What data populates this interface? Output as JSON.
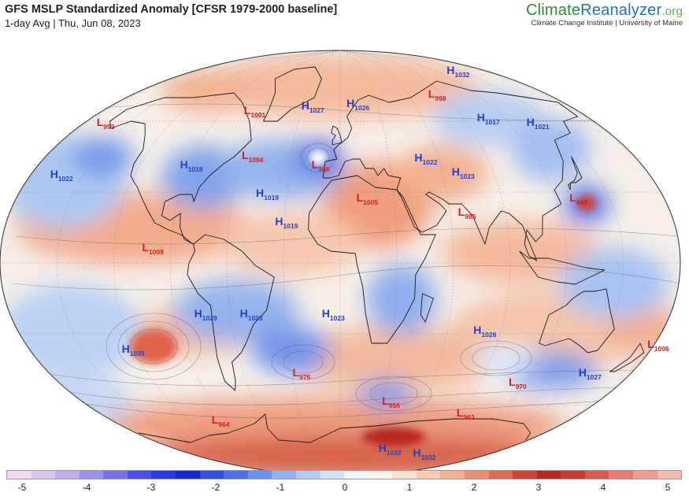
{
  "header": {
    "title": "GFS MSLP Standardized Anomaly [CFSR 1979-2000 baseline]",
    "subtitle": "1-day Avg | Thu, Jun 08, 2023"
  },
  "brand": {
    "part1": "Climate",
    "part2": "Reanalyzer",
    "part3": ".org",
    "sub": "Climate Change Institute | University of Maine"
  },
  "colors": {
    "high_label": "#1f3fd6",
    "low_label": "#d42020",
    "ocean_neutral": "#f4f4f4",
    "coast": "#1a1a1a"
  },
  "pressure_centers": [
    {
      "type": "L",
      "letter": "L",
      "value": "993",
      "lon": -170,
      "lat": 58
    },
    {
      "type": "L",
      "letter": "L",
      "value": "1001",
      "lon": -72,
      "lat": 63
    },
    {
      "type": "H",
      "letter": "H",
      "value": "1027",
      "lon": -30,
      "lat": 65
    },
    {
      "type": "H",
      "letter": "H",
      "value": "1026",
      "lon": 5,
      "lat": 66
    },
    {
      "type": "L",
      "letter": "L",
      "value": "998",
      "lon": 75,
      "lat": 70
    },
    {
      "type": "H",
      "letter": "H",
      "value": "1032",
      "lon": 125,
      "lat": 80
    },
    {
      "type": "H",
      "letter": "H",
      "value": "1017",
      "lon": 98,
      "lat": 60
    },
    {
      "type": "H",
      "letter": "H",
      "value": "1021",
      "lon": 130,
      "lat": 58
    },
    {
      "type": "H",
      "letter": "H",
      "value": "1022",
      "lon": -168,
      "lat": 36
    },
    {
      "type": "H",
      "letter": "H",
      "value": "1018",
      "lon": -95,
      "lat": 40
    },
    {
      "type": "L",
      "letter": "L",
      "value": "1004",
      "lon": -60,
      "lat": 44
    },
    {
      "type": "L",
      "letter": "L",
      "value": "988",
      "lon": -17,
      "lat": 40
    },
    {
      "type": "H",
      "letter": "H",
      "value": "1019",
      "lon": -47,
      "lat": 28
    },
    {
      "type": "H",
      "letter": "H",
      "value": "1022",
      "lon": 45,
      "lat": 43
    },
    {
      "type": "H",
      "letter": "H",
      "value": "1023",
      "lon": 65,
      "lat": 37
    },
    {
      "type": "L",
      "letter": "L",
      "value": "1005",
      "lon": 9,
      "lat": 26
    },
    {
      "type": "H",
      "letter": "H",
      "value": "1019",
      "lon": -35,
      "lat": 16
    },
    {
      "type": "L",
      "letter": "L",
      "value": "985",
      "lon": 64,
      "lat": 20
    },
    {
      "type": "L",
      "letter": "L",
      "value": "982",
      "lon": 127,
      "lat": 26
    },
    {
      "type": "L",
      "letter": "L",
      "value": "1009",
      "lon": -105,
      "lat": 5
    },
    {
      "type": "H",
      "letter": "H",
      "value": "1029",
      "lon": -80,
      "lat": -23
    },
    {
      "type": "H",
      "letter": "H",
      "value": "1023",
      "lon": -55,
      "lat": -23
    },
    {
      "type": "H",
      "letter": "H",
      "value": "1023",
      "lon": -10,
      "lat": -23
    },
    {
      "type": "H",
      "letter": "H",
      "value": "1026",
      "lon": 75,
      "lat": -30
    },
    {
      "type": "L",
      "letter": "L",
      "value": "1006",
      "lon": 178,
      "lat": -36
    },
    {
      "type": "H",
      "letter": "H",
      "value": "1035",
      "lon": -128,
      "lat": -38
    },
    {
      "type": "L",
      "letter": "L",
      "value": "975",
      "lon": -30,
      "lat": -48
    },
    {
      "type": "H",
      "letter": "H",
      "value": "1027",
      "lon": 150,
      "lat": -48
    },
    {
      "type": "L",
      "letter": "L",
      "value": "970",
      "lon": 110,
      "lat": -52
    },
    {
      "type": "L",
      "letter": "L",
      "value": "956",
      "lon": 30,
      "lat": -60
    },
    {
      "type": "L",
      "letter": "L",
      "value": "963",
      "lon": 90,
      "lat": -65
    },
    {
      "type": "L",
      "letter": "L",
      "value": "964",
      "lon": -105,
      "lat": -68
    },
    {
      "type": "H",
      "letter": "H",
      "value": "1032",
      "lon": 45,
      "lat": -80
    },
    {
      "type": "H",
      "letter": "H",
      "value": "1032",
      "lon": 95,
      "lat": -82
    }
  ],
  "colorbar": {
    "colors": [
      "#f0d8f0",
      "#dcc6f0",
      "#c0acf0",
      "#a08ff0",
      "#7a70f0",
      "#4a50f0",
      "#2838e8",
      "#1428d0",
      "#3050e0",
      "#4a70ec",
      "#6a92f2",
      "#8eb2f6",
      "#b2cef8",
      "#d2e4fa",
      "#ecf4fc",
      "#fdf4ee",
      "#fde2d2",
      "#fbcab0",
      "#f5ae90",
      "#ee8e70",
      "#e26a50",
      "#d04434",
      "#b82820",
      "#c83a32",
      "#d85a50",
      "#e87a70",
      "#f09a90",
      "#f8bab0"
    ],
    "ticks": [
      "-5",
      "-4",
      "-3",
      "-2",
      "-1",
      "0",
      "1",
      "2",
      "3",
      "4",
      "5"
    ]
  }
}
